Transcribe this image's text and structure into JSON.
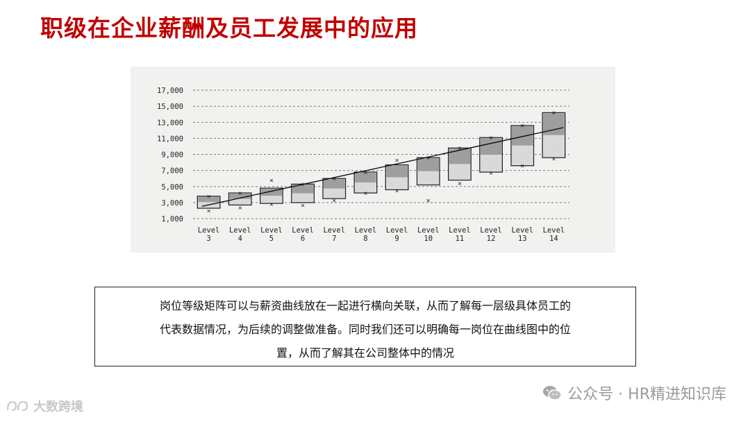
{
  "page": {
    "title": "职级在企业薪酬及员工发展中的应用"
  },
  "note": {
    "lines": [
      "岗位等级矩阵可以与薪资曲线放在一起进行横向关联，从而了解每一层级具体员工的",
      "代表数据情况，为后续的调整做准备。同时我们还可以明确每一岗位在曲线图中的位",
      "置，从而了解其在公司整体中的情况"
    ]
  },
  "watermarks": {
    "right": "公众号 · HR精进知识库",
    "left": "大数跨境",
    "wechat_icon": "wechat-icon",
    "left_icon": "logo-icon"
  },
  "colors": {
    "title": "#c00000",
    "bar_fill": "#8d8d8d",
    "bar_border": "#222222"
  },
  "chart_data": {
    "type": "box",
    "ytick_labels": [
      "1,000",
      "3,000",
      "5,000",
      "7,000",
      "9,000",
      "11,000",
      "13,000",
      "15,000",
      "17,000"
    ],
    "ylim": [
      1000,
      17000
    ],
    "grid": true,
    "categories": [
      [
        "Level",
        "3"
      ],
      [
        "Level",
        "4"
      ],
      [
        "Level",
        "5"
      ],
      [
        "Level",
        "6"
      ],
      [
        "Level",
        "7"
      ],
      [
        "Level",
        "8"
      ],
      [
        "Level",
        "9"
      ],
      [
        "Level",
        "10"
      ],
      [
        "Level",
        "11"
      ],
      [
        "Level",
        "12"
      ],
      [
        "Level",
        "13"
      ],
      [
        "Level",
        "14"
      ]
    ],
    "boxes": [
      {
        "low": 2300,
        "high": 3800,
        "min": 2000,
        "max": 3900
      },
      {
        "low": 2700,
        "high": 4200,
        "min": 2400,
        "max": 4300
      },
      {
        "low": 2900,
        "high": 4800,
        "min": 2800,
        "max": 5900
      },
      {
        "low": 3000,
        "high": 5300,
        "min": 2700,
        "max": 5400
      },
      {
        "low": 3500,
        "high": 6000,
        "min": 3300,
        "max": 6100
      },
      {
        "low": 4200,
        "high": 6800,
        "min": 4200,
        "max": 6900
      },
      {
        "low": 4600,
        "high": 7700,
        "min": 4500,
        "max": 8400
      },
      {
        "low": 5200,
        "high": 8600,
        "min": 3300,
        "max": 8700
      },
      {
        "low": 5800,
        "high": 9800,
        "min": 5400,
        "max": 9900
      },
      {
        "low": 6800,
        "high": 11100,
        "min": 6700,
        "max": 11200
      },
      {
        "low": 7600,
        "high": 12600,
        "min": 7600,
        "max": 12700
      },
      {
        "low": 8600,
        "high": 14200,
        "min": 8500,
        "max": 14300
      }
    ],
    "trend_line": [
      {
        "category": "3",
        "value": 2700
      },
      {
        "category": "14",
        "value": 12000
      }
    ]
  }
}
